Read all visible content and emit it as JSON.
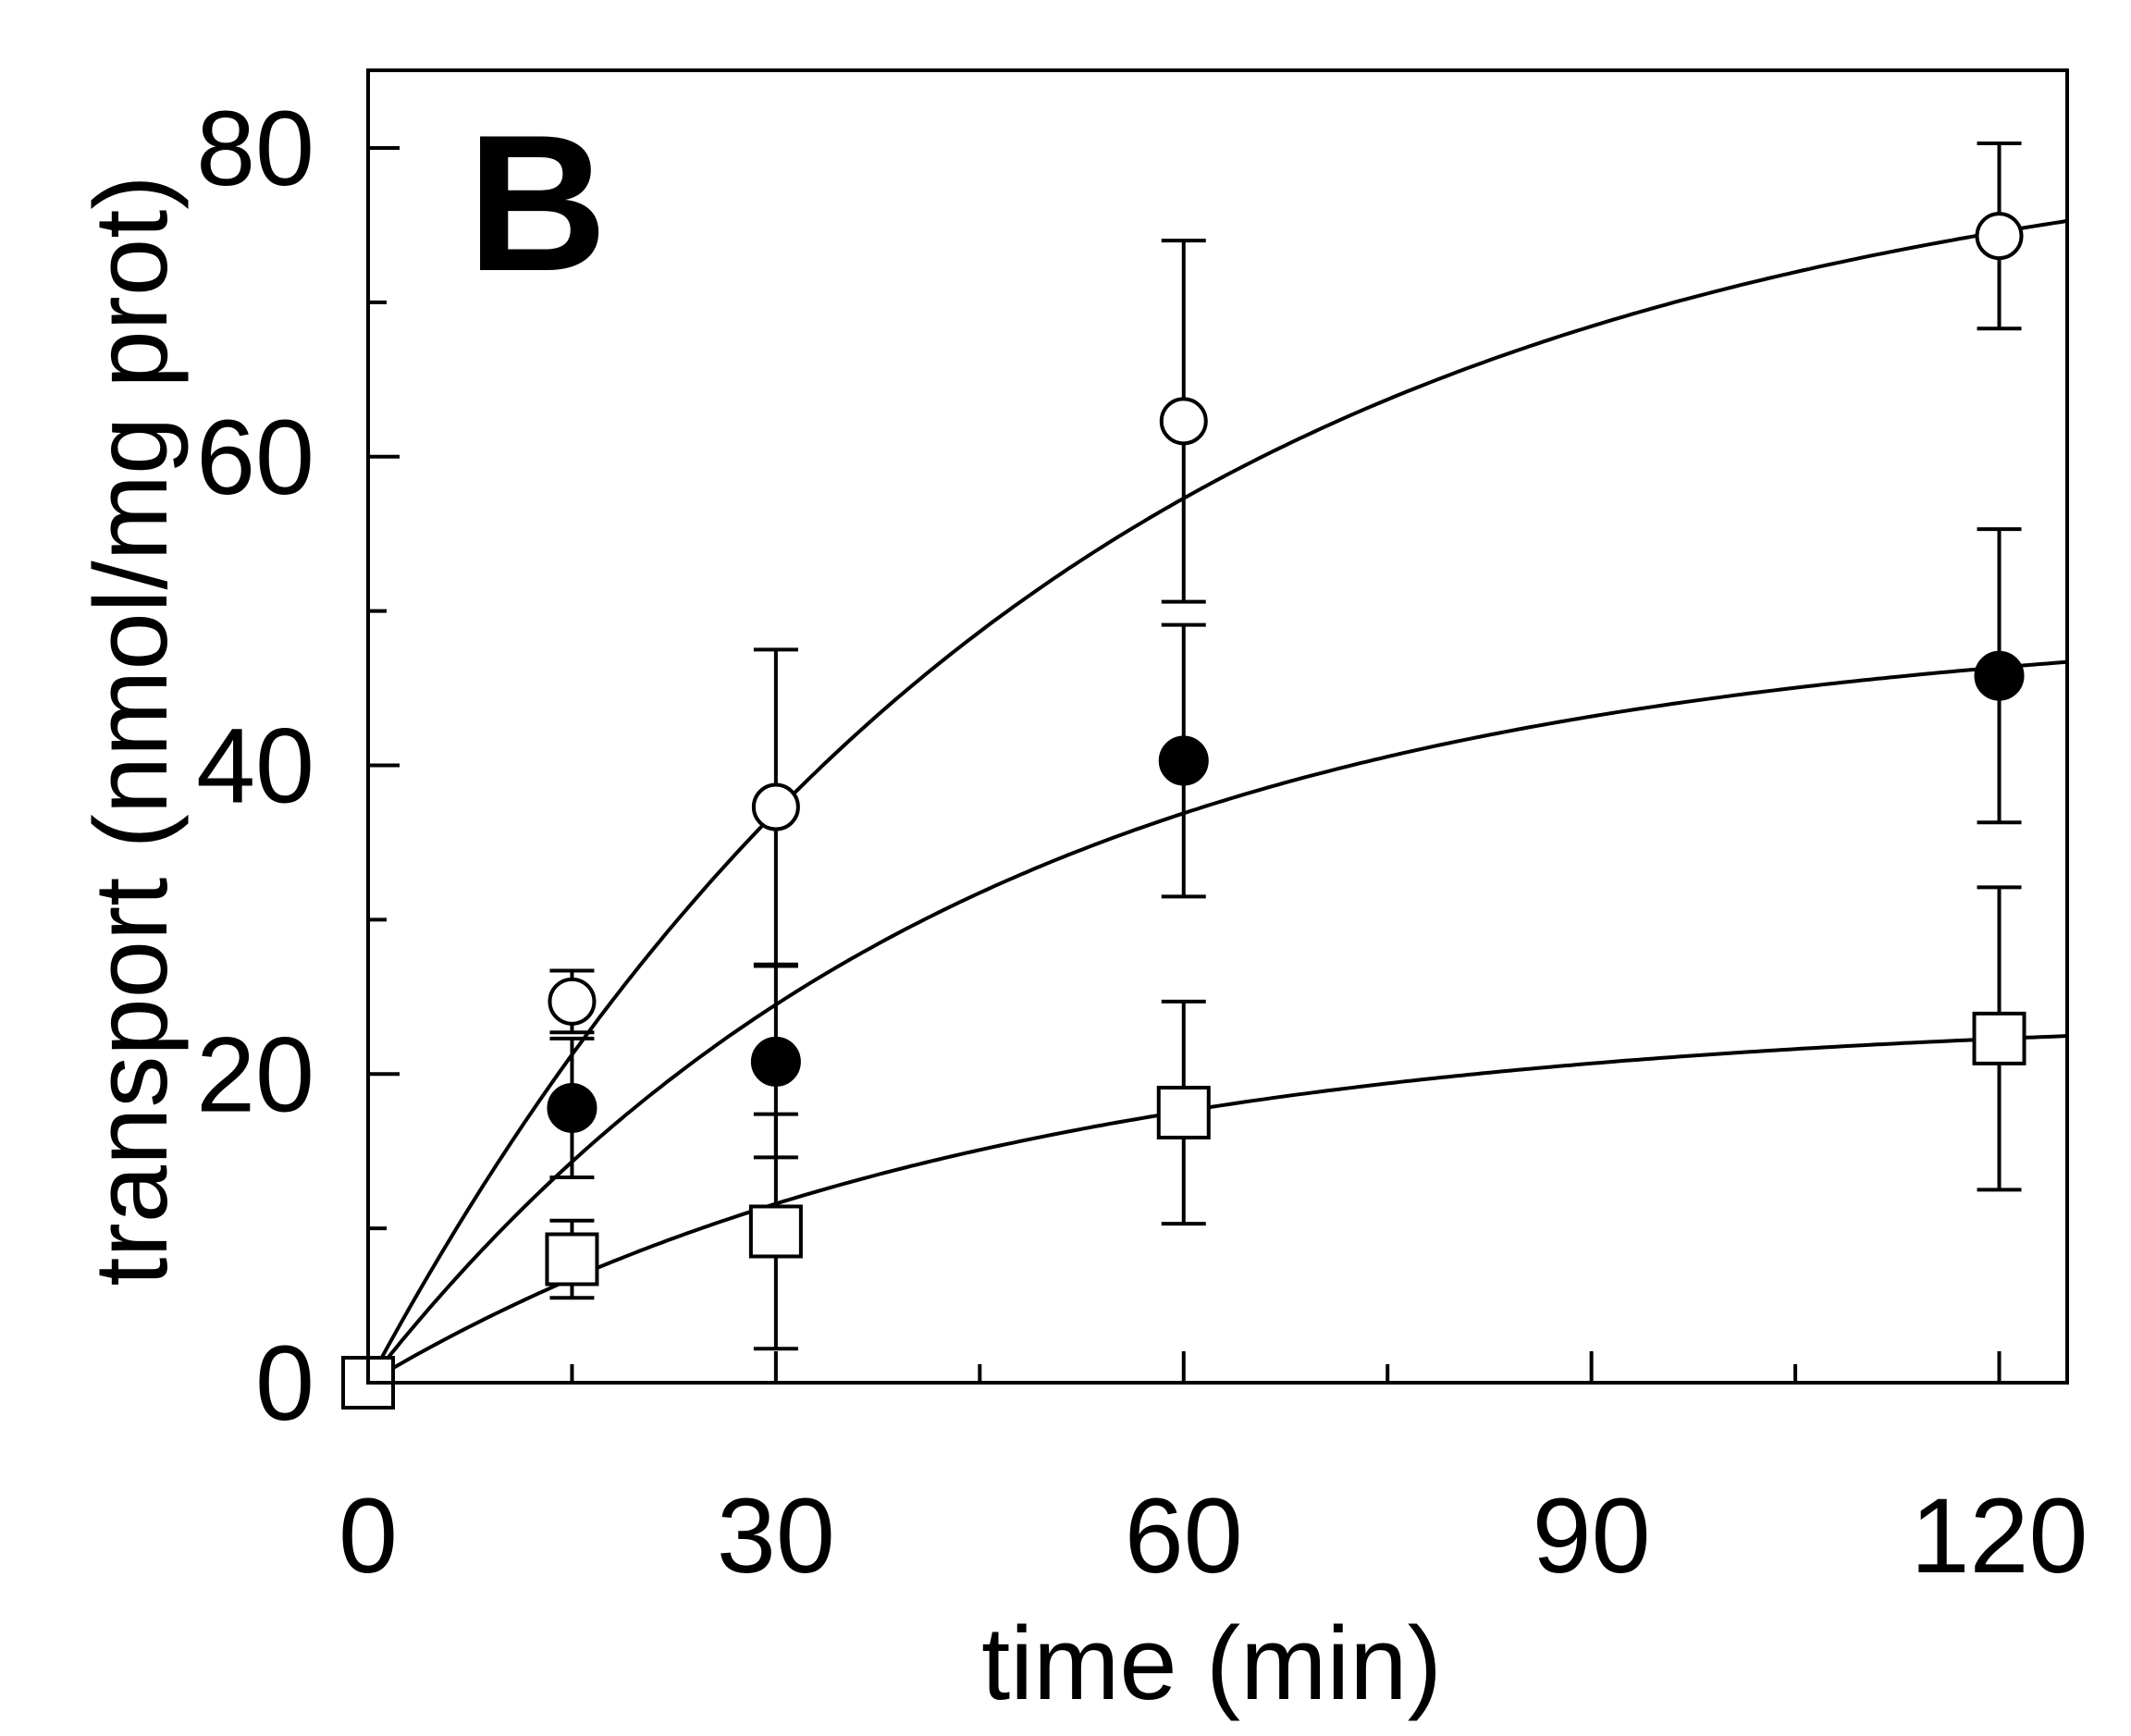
{
  "chart_data": {
    "type": "scatter",
    "panel_label": "B",
    "title": "",
    "xlabel": "time (min)",
    "ylabel": "transport (nmol/mg prot)",
    "xlim": [
      0,
      125
    ],
    "ylim": [
      0,
      85
    ],
    "x_ticks": [
      0,
      30,
      60,
      90,
      120
    ],
    "x_tick_labels": [
      "0",
      "30",
      "60",
      "90",
      "120"
    ],
    "x_minor_ticks": [
      15,
      45,
      75,
      105
    ],
    "y_ticks": [
      0,
      20,
      40,
      60,
      80
    ],
    "y_tick_labels": [
      "0",
      "20",
      "40",
      "60",
      "80"
    ],
    "y_minor_ticks": [
      10,
      30,
      50,
      70
    ],
    "series": [
      {
        "name": "open circles",
        "marker": "open-circle",
        "x": [
          15,
          30,
          60,
          120
        ],
        "y": [
          24.7,
          37.3,
          62.3,
          74.3
        ],
        "err": [
          2.0,
          10.2,
          11.7,
          6.0
        ],
        "fit": {
          "model": "y = A*(1 - exp(-k*t))",
          "A": 82.0,
          "k": 0.02
        }
      },
      {
        "name": "filled circles",
        "marker": "filled-circle",
        "x": [
          15,
          30,
          60,
          120
        ],
        "y": [
          17.8,
          20.8,
          40.3,
          45.8
        ],
        "err": [
          4.5,
          6.2,
          8.8,
          9.5
        ],
        "fit": {
          "model": "y = A*(1 - exp(-k*t))",
          "A": 49.6,
          "k": 0.0227
        }
      },
      {
        "name": "open squares",
        "marker": "open-square",
        "x": [
          0,
          15,
          30,
          60,
          120
        ],
        "y": [
          0,
          8.0,
          9.8,
          17.5,
          22.3
        ],
        "err": [
          0,
          2.5,
          7.6,
          7.2,
          9.8
        ],
        "fit": {
          "model": "y = A*(1 - exp(-k*t))",
          "A": 24.0,
          "k": 0.022
        }
      }
    ],
    "colors": {
      "line": "#000000",
      "background": "#ffffff"
    }
  }
}
